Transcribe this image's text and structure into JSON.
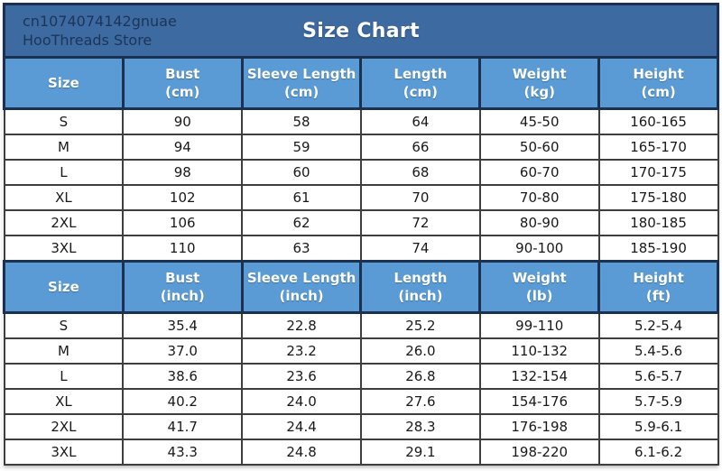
{
  "header": {
    "store_id": "cn1074074142gnuae",
    "store_name": "HooThreads Store",
    "title": "Size Chart"
  },
  "colors": {
    "band_bg": "#3d6aa1",
    "header_bg": "#5b9bd5",
    "navy_border": "#1c3050",
    "data_border": "#3e3e3e",
    "store_text": "#1c3558",
    "header_text": "#ffffff",
    "data_text": "#191919"
  },
  "chart_data": [
    {
      "type": "table",
      "columns": [
        {
          "label": "Size",
          "unit": ""
        },
        {
          "label": "Bust",
          "unit": "(cm)"
        },
        {
          "label": "Sleeve Length",
          "unit": "(cm)"
        },
        {
          "label": "Length",
          "unit": "(cm)"
        },
        {
          "label": "Weight",
          "unit": "(kg)"
        },
        {
          "label": "Height",
          "unit": "(cm)"
        }
      ],
      "rows": [
        [
          "S",
          "90",
          "58",
          "64",
          "45-50",
          "160-165"
        ],
        [
          "M",
          "94",
          "59",
          "66",
          "50-60",
          "165-170"
        ],
        [
          "L",
          "98",
          "60",
          "68",
          "60-70",
          "170-175"
        ],
        [
          "XL",
          "102",
          "61",
          "70",
          "70-80",
          "175-180"
        ],
        [
          "2XL",
          "106",
          "62",
          "72",
          "80-90",
          "180-185"
        ],
        [
          "3XL",
          "110",
          "63",
          "74",
          "90-100",
          "185-190"
        ]
      ]
    },
    {
      "type": "table",
      "columns": [
        {
          "label": "Size",
          "unit": ""
        },
        {
          "label": "Bust",
          "unit": "(inch)"
        },
        {
          "label": "Sleeve Length",
          "unit": "(inch)"
        },
        {
          "label": "Length",
          "unit": "(inch)"
        },
        {
          "label": "Weight",
          "unit": "(lb)"
        },
        {
          "label": "Height",
          "unit": "(ft)"
        }
      ],
      "rows": [
        [
          "S",
          "35.4",
          "22.8",
          "25.2",
          "99-110",
          "5.2-5.4"
        ],
        [
          "M",
          "37.0",
          "23.2",
          "26.0",
          "110-132",
          "5.4-5.6"
        ],
        [
          "L",
          "38.6",
          "23.6",
          "26.8",
          "132-154",
          "5.6-5.7"
        ],
        [
          "XL",
          "40.2",
          "24.0",
          "27.6",
          "154-176",
          "5.7-5.9"
        ],
        [
          "2XL",
          "41.7",
          "24.4",
          "28.3",
          "176-198",
          "5.9-6.1"
        ],
        [
          "3XL",
          "43.3",
          "24.8",
          "29.1",
          "198-220",
          "6.1-6.2"
        ]
      ]
    }
  ]
}
